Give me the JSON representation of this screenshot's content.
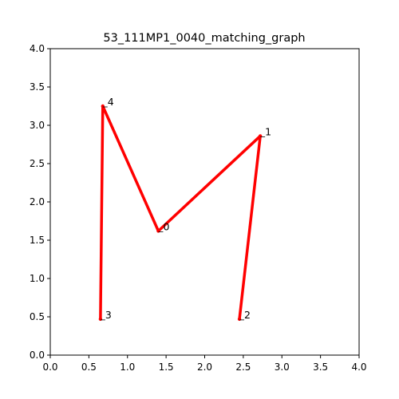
{
  "chart_data": {
    "type": "line",
    "title": "53_111MP1_0040_matching_graph",
    "xlabel": "",
    "ylabel": "",
    "xlim": [
      0.0,
      4.0
    ],
    "ylim": [
      0.0,
      4.0
    ],
    "xticks": [
      "0.0",
      "0.5",
      "1.0",
      "1.5",
      "2.0",
      "2.5",
      "3.0",
      "3.5",
      "4.0"
    ],
    "yticks": [
      "0.0",
      "0.5",
      "1.0",
      "1.5",
      "2.0",
      "2.5",
      "3.0",
      "3.5",
      "4.0"
    ],
    "grid": false,
    "line_color": "#ff0000",
    "nodes": [
      {
        "label": "0",
        "x": 1.4,
        "y": 1.62
      },
      {
        "label": "1",
        "x": 2.72,
        "y": 2.86
      },
      {
        "label": "2",
        "x": 2.45,
        "y": 0.47
      },
      {
        "label": "3",
        "x": 0.65,
        "y": 0.47
      },
      {
        "label": "4",
        "x": 0.68,
        "y": 3.25
      }
    ],
    "edges": [
      [
        2,
        1
      ],
      [
        1,
        0
      ],
      [
        0,
        4
      ],
      [
        4,
        3
      ]
    ]
  }
}
